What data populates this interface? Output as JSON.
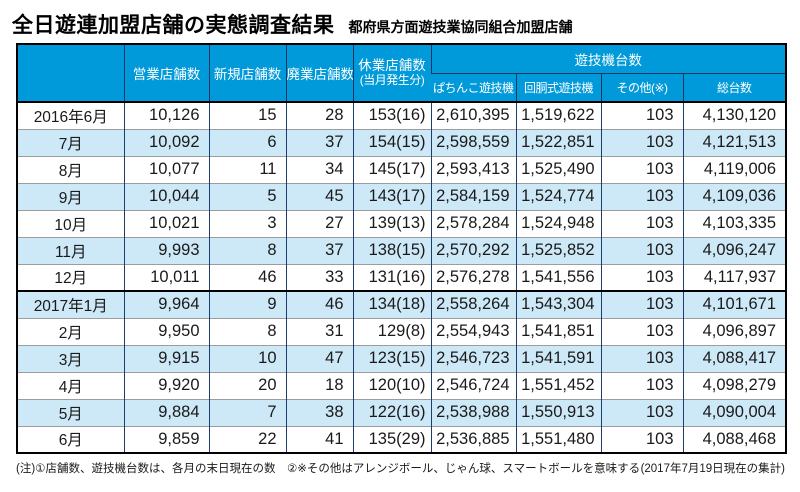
{
  "title": "全日遊連加盟店舗の実態調査結果",
  "subtitle": "都府県方面遊技業協同組合加盟店舗",
  "footnote_left": "(注)①店舗数、遊技機台数は、各月の末日現在の数　②※その他はアレンジボール、じゃん球、スマートボールを意味する",
  "footnote_right": "(2017年7月19日現在の集計)",
  "colors": {
    "header_blue": "#0099d9",
    "row_alt_blue": "#cde8f6",
    "border_navy": "#1c3d6e",
    "border_gray": "#9c9c9c",
    "border_black": "#000000"
  },
  "chart_data": {
    "type": "table",
    "title": "全日遊連加盟店舗の実態調査結果",
    "subtitle": "都府県方面遊技業協同組合加盟店舗",
    "column_headers": {
      "month": "",
      "operating": "営業店舗数",
      "new_stores": "新規店舗数",
      "closed": "廃業店舗数",
      "suspended_line1": "休業店舗数",
      "suspended_line2": "(当月発生分)",
      "machines_group": "遊技機台数",
      "pachinko": "ぱちんこ遊技機",
      "reel": "回胴式遊技機",
      "other": "その他(※)",
      "total": "総台数"
    },
    "year_break_row_index": 7,
    "rows": [
      {
        "month": "2016年6月",
        "values": [
          "10,126",
          "15",
          "28",
          "153(16)",
          "2,610,395",
          "1,519,622",
          "103",
          "4,130,120"
        ]
      },
      {
        "month": "7月",
        "values": [
          "10,092",
          "6",
          "37",
          "154(15)",
          "2,598,559",
          "1,522,851",
          "103",
          "4,121,513"
        ]
      },
      {
        "month": "8月",
        "values": [
          "10,077",
          "11",
          "34",
          "145(17)",
          "2,593,413",
          "1,525,490",
          "103",
          "4,119,006"
        ]
      },
      {
        "month": "9月",
        "values": [
          "10,044",
          "5",
          "45",
          "143(17)",
          "2,584,159",
          "1,524,774",
          "103",
          "4,109,036"
        ]
      },
      {
        "month": "10月",
        "values": [
          "10,021",
          "3",
          "27",
          "139(13)",
          "2,578,284",
          "1,524,948",
          "103",
          "4,103,335"
        ]
      },
      {
        "month": "11月",
        "values": [
          "9,993",
          "8",
          "37",
          "138(15)",
          "2,570,292",
          "1,525,852",
          "103",
          "4,096,247"
        ]
      },
      {
        "month": "12月",
        "values": [
          "10,011",
          "46",
          "33",
          "131(16)",
          "2,576,278",
          "1,541,556",
          "103",
          "4,117,937"
        ]
      },
      {
        "month": "2017年1月",
        "values": [
          "9,964",
          "9",
          "46",
          "134(18)",
          "2,558,264",
          "1,543,304",
          "103",
          "4,101,671"
        ]
      },
      {
        "month": "2月",
        "values": [
          "9,950",
          "8",
          "31",
          "129(8)",
          "2,554,943",
          "1,541,851",
          "103",
          "4,096,897"
        ]
      },
      {
        "month": "3月",
        "values": [
          "9,915",
          "10",
          "47",
          "123(15)",
          "2,546,723",
          "1,541,591",
          "103",
          "4,088,417"
        ]
      },
      {
        "month": "4月",
        "values": [
          "9,920",
          "20",
          "18",
          "120(10)",
          "2,546,724",
          "1,551,452",
          "103",
          "4,098,279"
        ]
      },
      {
        "month": "5月",
        "values": [
          "9,884",
          "7",
          "38",
          "122(16)",
          "2,538,988",
          "1,550,913",
          "103",
          "4,090,004"
        ]
      },
      {
        "month": "6月",
        "values": [
          "9,859",
          "22",
          "41",
          "135(29)",
          "2,536,885",
          "1,551,480",
          "103",
          "4,088,468"
        ]
      }
    ]
  }
}
